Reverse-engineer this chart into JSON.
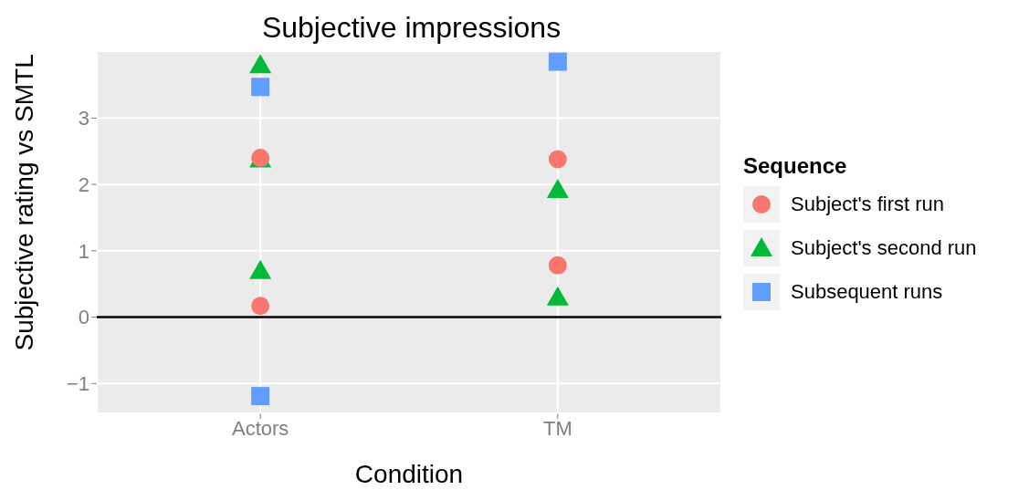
{
  "chart_data": {
    "type": "scatter",
    "title": "Subjective impressions",
    "xlabel": "Condition",
    "ylabel": "Subjective rating vs SMTL",
    "legend_title": "Sequence",
    "categories": [
      "Actors",
      "TM"
    ],
    "series": [
      {
        "name": "Subject's first run",
        "color": "#f8766d",
        "marker": "circle",
        "x": [
          "Actors",
          "Actors",
          "TM",
          "TM"
        ],
        "values": [
          2.4,
          0.17,
          2.38,
          0.78
        ]
      },
      {
        "name": "Subject's second run",
        "color": "#00ba38",
        "marker": "triangle",
        "x": [
          "Actors",
          "Actors",
          "Actors",
          "TM",
          "TM"
        ],
        "values": [
          3.8,
          2.38,
          0.7,
          1.92,
          0.3
        ]
      },
      {
        "name": "Subsequent runs",
        "color": "#619cff",
        "marker": "square",
        "x": [
          "Actors",
          "Actors",
          "TM"
        ],
        "values": [
          3.47,
          -1.19,
          3.85
        ]
      }
    ],
    "ylim": [
      -1.45,
      4.01
    ],
    "yticks": [
      {
        "value": -1,
        "label": "−1"
      },
      0,
      1,
      2,
      3
    ],
    "grid": true,
    "legend": "right",
    "ref_lines": [
      {
        "axis": "y",
        "value": 0,
        "color": "#000000"
      }
    ]
  }
}
